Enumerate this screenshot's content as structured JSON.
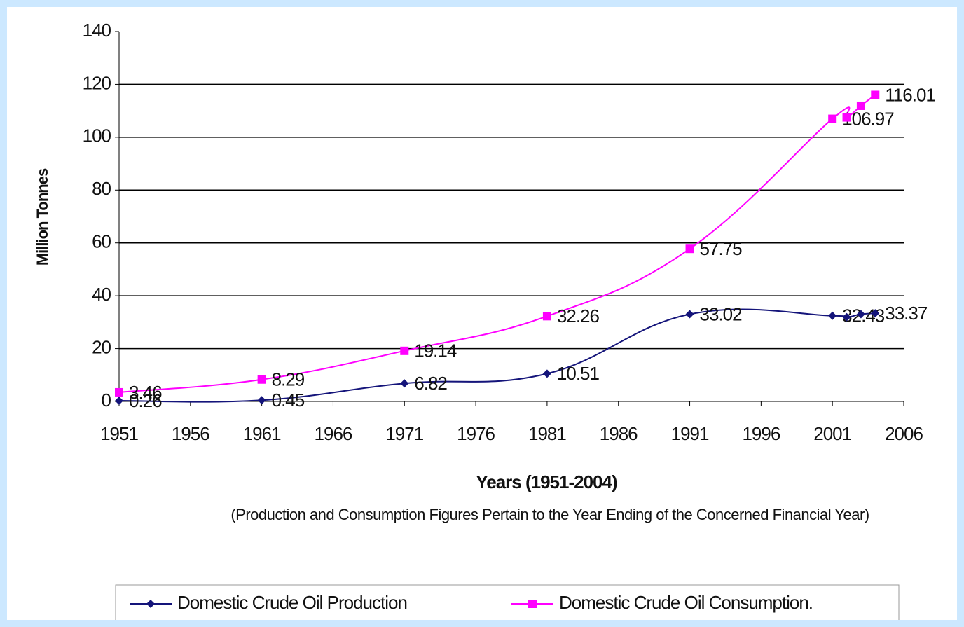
{
  "chart_data": {
    "type": "line",
    "y_label": "Million Tonnes",
    "x_label": "Years (1951-2004)",
    "note": "(Production and Consumption Figures Pertain to the Year Ending of the Concerned Financial Year)",
    "x": [
      1951,
      1961,
      1971,
      1981,
      1991,
      2001,
      2002,
      2003,
      2004
    ],
    "series": [
      {
        "name": "Domestic  Crude  Oil Production",
        "color": "#14147a",
        "marker": "diamond",
        "values": [
          0.26,
          0.45,
          6.82,
          10.51,
          33.02,
          32.43,
          31.9,
          33.0,
          33.37
        ],
        "value_labels": [
          "0.26",
          "0.45",
          "6.82",
          "10.51",
          "33.02",
          "32.43",
          null,
          null,
          "33.37"
        ]
      },
      {
        "name": "Domestic Crude  Oil Consumption.",
        "color": "#ff00ff",
        "marker": "square",
        "values": [
          3.46,
          8.29,
          19.14,
          32.26,
          57.75,
          106.97,
          107.5,
          111.9,
          116.01
        ],
        "value_labels": [
          "3.46",
          "8.29",
          "19.14",
          "32.26",
          "57.75",
          "106.97",
          null,
          null,
          "116.01"
        ]
      }
    ],
    "xlim": [
      1951,
      2006
    ],
    "xticks": [
      1951,
      1956,
      1961,
      1966,
      1971,
      1976,
      1981,
      1986,
      1991,
      1996,
      2001,
      2006
    ],
    "ylim": [
      0,
      140
    ],
    "yticks": [
      0,
      20,
      40,
      60,
      80,
      100,
      120,
      140
    ],
    "grid": true,
    "legend": "bottom"
  }
}
